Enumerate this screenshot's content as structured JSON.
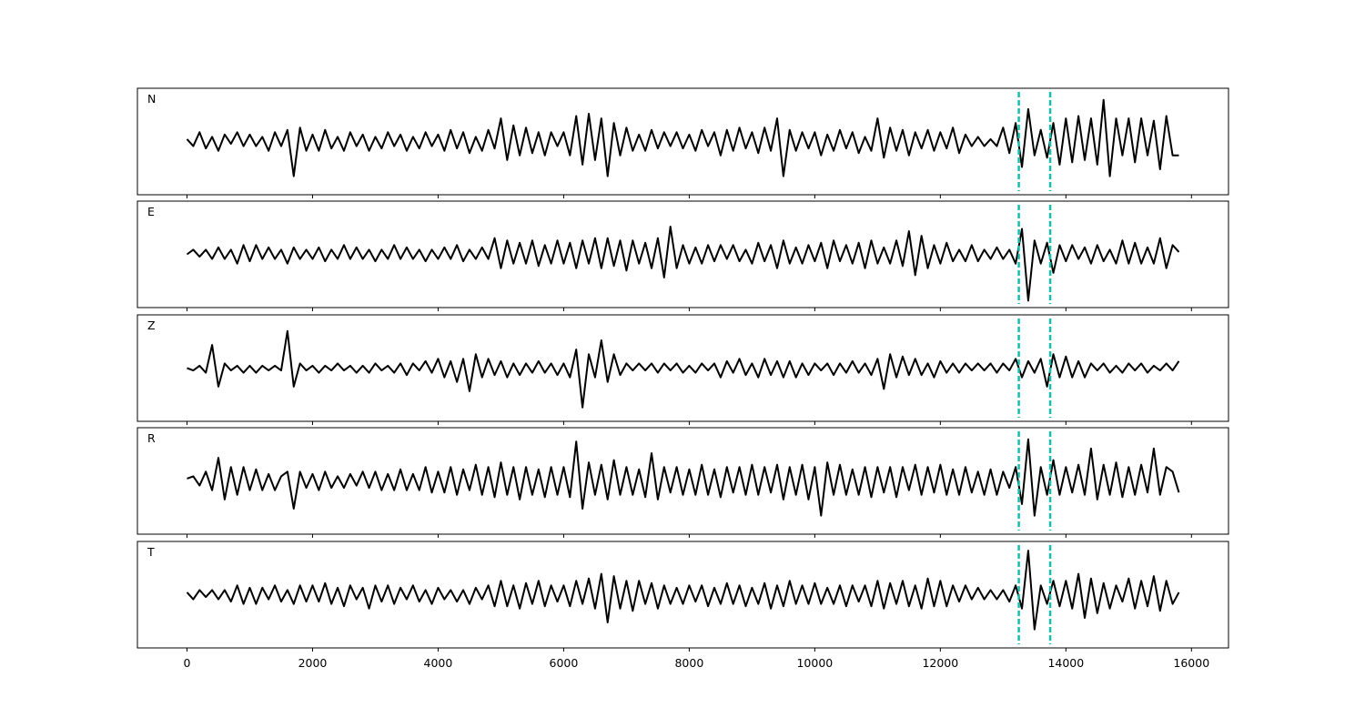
{
  "chart_data": {
    "type": "line",
    "xlim": [
      -790,
      16590
    ],
    "xticks": [
      0,
      2000,
      4000,
      6000,
      8000,
      10000,
      12000,
      14000,
      16000
    ],
    "ylim": [
      -1.15,
      1.15
    ],
    "vlines": [
      13250,
      13750
    ],
    "vline_color": "#14bfae",
    "x": [
      0,
      100,
      200,
      300,
      400,
      500,
      600,
      700,
      800,
      900,
      1000,
      1100,
      1200,
      1300,
      1400,
      1500,
      1600,
      1700,
      1800,
      1900,
      2000,
      2100,
      2200,
      2300,
      2400,
      2500,
      2600,
      2700,
      2800,
      2900,
      3000,
      3100,
      3200,
      3300,
      3400,
      3500,
      3600,
      3700,
      3800,
      3900,
      4000,
      4100,
      4200,
      4300,
      4400,
      4500,
      4600,
      4700,
      4800,
      4900,
      5000,
      5100,
      5200,
      5300,
      5400,
      5500,
      5600,
      5700,
      5800,
      5900,
      6000,
      6100,
      6200,
      6300,
      6400,
      6500,
      6600,
      6700,
      6800,
      6900,
      7000,
      7100,
      7200,
      7300,
      7400,
      7500,
      7600,
      7700,
      7800,
      7900,
      8000,
      8100,
      8200,
      8300,
      8400,
      8500,
      8600,
      8700,
      8800,
      8900,
      9000,
      9100,
      9200,
      9300,
      9400,
      9500,
      9600,
      9700,
      9800,
      9900,
      10000,
      10100,
      10200,
      10300,
      10400,
      10500,
      10600,
      10700,
      10800,
      10900,
      11000,
      11100,
      11200,
      11300,
      11400,
      11500,
      11600,
      11700,
      11800,
      11900,
      12000,
      12100,
      12200,
      12300,
      12400,
      12500,
      12600,
      12700,
      12800,
      12900,
      13000,
      13100,
      13200,
      13300,
      13400,
      13500,
      13600,
      13700,
      13800,
      13900,
      14000,
      14100,
      14200,
      14300,
      14400,
      14500,
      14600,
      14700,
      14800,
      14900,
      15000,
      15100,
      15200,
      15300,
      15400,
      15500,
      15600,
      15700,
      15800
    ],
    "series": [
      {
        "name": "N",
        "color": "#000000",
        "values": [
          0.05,
          -0.1,
          0.2,
          -0.15,
          0.1,
          -0.2,
          0.15,
          -0.05,
          0.2,
          -0.1,
          0.15,
          -0.1,
          0.1,
          -0.2,
          0.2,
          -0.1,
          0.25,
          -0.75,
          0.3,
          -0.2,
          0.15,
          -0.2,
          0.25,
          -0.15,
          0.1,
          -0.2,
          0.2,
          -0.1,
          0.15,
          -0.2,
          0.1,
          -0.15,
          0.2,
          -0.1,
          0.15,
          -0.2,
          0.1,
          -0.15,
          0.2,
          -0.1,
          0.15,
          -0.2,
          0.25,
          -0.15,
          0.2,
          -0.25,
          0.1,
          -0.2,
          0.25,
          -0.15,
          0.5,
          -0.4,
          0.35,
          -0.3,
          0.3,
          -0.25,
          0.2,
          -0.3,
          0.2,
          -0.1,
          0.2,
          -0.3,
          0.55,
          -0.5,
          0.6,
          -0.4,
          0.5,
          -0.75,
          0.4,
          -0.3,
          0.3,
          -0.2,
          0.15,
          -0.2,
          0.25,
          -0.15,
          0.2,
          -0.1,
          0.2,
          -0.15,
          0.15,
          -0.2,
          0.25,
          -0.1,
          0.2,
          -0.3,
          0.25,
          -0.2,
          0.3,
          -0.15,
          0.2,
          -0.25,
          0.3,
          -0.2,
          0.5,
          -0.75,
          0.25,
          -0.2,
          0.2,
          -0.15,
          0.2,
          -0.3,
          0.15,
          -0.2,
          0.25,
          -0.15,
          0.2,
          -0.25,
          0.1,
          -0.2,
          0.5,
          -0.35,
          0.3,
          -0.2,
          0.25,
          -0.3,
          0.2,
          -0.15,
          0.25,
          -0.2,
          0.2,
          -0.15,
          0.3,
          -0.25,
          0.15,
          -0.1,
          0.1,
          -0.1,
          0.05,
          -0.1,
          0.3,
          -0.25,
          0.4,
          -0.55,
          0.7,
          -0.3,
          0.25,
          -0.35,
          0.4,
          -0.5,
          0.5,
          -0.45,
          0.55,
          -0.4,
          0.5,
          -0.5,
          0.9,
          -0.75,
          0.5,
          -0.3,
          0.5,
          -0.45,
          0.5,
          -0.3,
          0.45,
          -0.6,
          0.55,
          -0.3,
          -0.3
        ]
      },
      {
        "name": "E",
        "color": "#000000",
        "values": [
          0,
          0.1,
          -0.05,
          0.1,
          -0.1,
          0.15,
          -0.1,
          0.1,
          -0.2,
          0.2,
          -0.15,
          0.2,
          -0.1,
          0.15,
          -0.1,
          0.1,
          -0.2,
          0.15,
          -0.1,
          0.1,
          -0.1,
          0.15,
          -0.15,
          0.1,
          -0.1,
          0.2,
          -0.1,
          0.15,
          -0.1,
          0.1,
          -0.15,
          0.1,
          -0.1,
          0.2,
          -0.1,
          0.15,
          -0.1,
          0.1,
          -0.15,
          0.1,
          -0.1,
          0.15,
          -0.1,
          0.2,
          -0.15,
          0.1,
          -0.1,
          0.15,
          -0.1,
          0.35,
          -0.3,
          0.3,
          -0.2,
          0.25,
          -0.2,
          0.3,
          -0.25,
          0.2,
          -0.2,
          0.3,
          -0.2,
          0.25,
          -0.3,
          0.3,
          -0.2,
          0.35,
          -0.3,
          0.35,
          -0.25,
          0.3,
          -0.35,
          0.3,
          -0.2,
          0.25,
          -0.3,
          0.35,
          -0.5,
          0.6,
          -0.3,
          0.2,
          -0.2,
          0.15,
          -0.2,
          0.2,
          -0.15,
          0.2,
          -0.1,
          0.2,
          -0.15,
          0.1,
          -0.2,
          0.25,
          -0.15,
          0.2,
          -0.3,
          0.3,
          -0.2,
          0.15,
          -0.2,
          0.2,
          -0.15,
          0.25,
          -0.3,
          0.3,
          -0.15,
          0.2,
          -0.2,
          0.25,
          -0.3,
          0.3,
          -0.2,
          0.15,
          -0.2,
          0.3,
          -0.25,
          0.5,
          -0.45,
          0.4,
          -0.3,
          0.2,
          -0.2,
          0.25,
          -0.15,
          0.1,
          -0.15,
          0.2,
          -0.15,
          0.1,
          -0.1,
          0.15,
          -0.1,
          0.1,
          -0.2,
          0.55,
          -1.0,
          0.3,
          -0.2,
          0.25,
          -0.4,
          0.2,
          -0.15,
          0.2,
          -0.1,
          0.15,
          -0.2,
          0.2,
          -0.15,
          0.1,
          -0.2,
          0.3,
          -0.2,
          0.25,
          -0.2,
          0.15,
          -0.2,
          0.35,
          -0.3,
          0.2,
          0.05
        ]
      },
      {
        "name": "Z",
        "color": "#000000",
        "values": [
          0,
          -0.05,
          0.05,
          -0.1,
          0.5,
          -0.4,
          0.1,
          -0.05,
          0.05,
          -0.1,
          0.05,
          -0.1,
          0.05,
          -0.05,
          0.05,
          -0.05,
          0.8,
          -0.4,
          0.1,
          -0.05,
          0.05,
          -0.1,
          0.05,
          -0.05,
          0.1,
          -0.05,
          0.05,
          -0.1,
          0.05,
          -0.1,
          0.1,
          -0.05,
          0.05,
          -0.1,
          0.1,
          -0.15,
          0.1,
          -0.05,
          0.15,
          -0.1,
          0.2,
          -0.2,
          0.15,
          -0.3,
          0.2,
          -0.5,
          0.3,
          -0.2,
          0.2,
          -0.15,
          0.15,
          -0.2,
          0.1,
          -0.15,
          0.1,
          -0.1,
          0.15,
          -0.1,
          0.1,
          -0.15,
          0.1,
          -0.2,
          0.4,
          -0.85,
          0.3,
          -0.2,
          0.6,
          -0.3,
          0.3,
          -0.15,
          0.1,
          -0.05,
          0.1,
          -0.05,
          0.1,
          -0.1,
          0.1,
          -0.05,
          0.1,
          -0.1,
          0.05,
          -0.1,
          0.1,
          -0.05,
          0.1,
          -0.2,
          0.15,
          -0.1,
          0.2,
          -0.15,
          0.1,
          -0.2,
          0.2,
          -0.15,
          0.15,
          -0.2,
          0.15,
          -0.2,
          0.1,
          -0.15,
          0.1,
          -0.05,
          0.1,
          -0.15,
          0.1,
          -0.1,
          0.15,
          -0.1,
          0.1,
          -0.15,
          0.2,
          -0.45,
          0.3,
          -0.2,
          0.25,
          -0.15,
          0.2,
          -0.15,
          0.1,
          -0.2,
          0.15,
          -0.1,
          0.1,
          -0.1,
          0.1,
          -0.05,
          0.1,
          -0.05,
          0.1,
          -0.1,
          0.1,
          -0.05,
          0.2,
          -0.2,
          0.15,
          -0.1,
          0.2,
          -0.4,
          0.3,
          -0.2,
          0.25,
          -0.2,
          0.15,
          -0.2,
          0.1,
          -0.05,
          0.1,
          -0.1,
          0.05,
          -0.1,
          0.1,
          -0.05,
          0.1,
          -0.1,
          0.05,
          -0.05,
          0.1,
          -0.05,
          0.15
        ]
      },
      {
        "name": "R",
        "color": "#000000",
        "values": [
          0.05,
          0.1,
          -0.1,
          0.2,
          -0.2,
          0.5,
          -0.4,
          0.3,
          -0.3,
          0.3,
          -0.2,
          0.25,
          -0.2,
          0.15,
          -0.2,
          0.1,
          0.2,
          -0.6,
          0.2,
          -0.15,
          0.15,
          -0.2,
          0.2,
          -0.15,
          0.1,
          -0.15,
          0.15,
          -0.1,
          0.2,
          -0.15,
          0.2,
          -0.2,
          0.15,
          -0.2,
          0.25,
          -0.2,
          0.15,
          -0.2,
          0.3,
          -0.25,
          0.2,
          -0.25,
          0.3,
          -0.3,
          0.25,
          -0.2,
          0.35,
          -0.3,
          0.3,
          -0.35,
          0.4,
          -0.3,
          0.3,
          -0.4,
          0.3,
          -0.3,
          0.25,
          -0.35,
          0.3,
          -0.3,
          0.3,
          -0.35,
          0.85,
          -0.6,
          0.4,
          -0.3,
          0.35,
          -0.4,
          0.45,
          -0.3,
          0.3,
          -0.3,
          0.25,
          -0.35,
          0.6,
          -0.4,
          0.3,
          -0.25,
          0.3,
          -0.3,
          0.25,
          -0.3,
          0.35,
          -0.3,
          0.25,
          -0.35,
          0.3,
          -0.25,
          0.3,
          -0.3,
          0.35,
          -0.3,
          0.3,
          -0.25,
          0.35,
          -0.4,
          0.3,
          -0.3,
          0.35,
          -0.4,
          0.3,
          -0.75,
          0.4,
          -0.3,
          0.35,
          -0.3,
          0.25,
          -0.3,
          0.3,
          -0.35,
          0.3,
          -0.25,
          0.3,
          -0.35,
          0.3,
          -0.2,
          0.35,
          -0.3,
          0.3,
          -0.25,
          0.35,
          -0.3,
          0.25,
          -0.3,
          0.3,
          -0.25,
          0.2,
          -0.3,
          0.25,
          -0.3,
          0.2,
          -0.15,
          0.3,
          -0.5,
          0.9,
          -0.75,
          0.3,
          -0.3,
          0.45,
          -0.3,
          0.3,
          -0.25,
          0.35,
          -0.3,
          0.7,
          -0.4,
          0.35,
          -0.3,
          0.4,
          -0.35,
          0.3,
          -0.3,
          0.35,
          -0.25,
          0.7,
          -0.3,
          0.3,
          0.2,
          -0.25
        ]
      },
      {
        "name": "T",
        "color": "#000000",
        "values": [
          0.05,
          -0.1,
          0.1,
          -0.05,
          0.1,
          -0.1,
          0.1,
          -0.15,
          0.2,
          -0.2,
          0.15,
          -0.2,
          0.15,
          -0.1,
          0.2,
          -0.15,
          0.1,
          -0.2,
          0.2,
          -0.15,
          0.2,
          -0.15,
          0.25,
          -0.2,
          0.15,
          -0.25,
          0.2,
          -0.1,
          0.15,
          -0.3,
          0.2,
          -0.15,
          0.2,
          -0.2,
          0.15,
          -0.1,
          0.2,
          -0.15,
          0.1,
          -0.2,
          0.15,
          -0.1,
          0.1,
          -0.15,
          0.1,
          -0.2,
          0.15,
          -0.1,
          0.2,
          -0.25,
          0.3,
          -0.25,
          0.2,
          -0.3,
          0.25,
          -0.2,
          0.3,
          -0.25,
          0.2,
          -0.15,
          0.2,
          -0.25,
          0.3,
          -0.2,
          0.35,
          -0.3,
          0.45,
          -0.6,
          0.4,
          -0.3,
          0.3,
          -0.35,
          0.3,
          -0.2,
          0.25,
          -0.3,
          0.2,
          -0.2,
          0.15,
          -0.2,
          0.2,
          -0.15,
          0.2,
          -0.25,
          0.15,
          -0.2,
          0.25,
          -0.2,
          0.2,
          -0.25,
          0.15,
          -0.2,
          0.25,
          -0.3,
          0.2,
          -0.25,
          0.3,
          -0.2,
          0.2,
          -0.2,
          0.25,
          -0.2,
          0.15,
          -0.2,
          0.2,
          -0.25,
          0.2,
          -0.15,
          0.2,
          -0.25,
          0.3,
          -0.3,
          0.25,
          -0.2,
          0.3,
          -0.25,
          0.2,
          -0.3,
          0.35,
          -0.25,
          0.3,
          -0.25,
          0.2,
          -0.15,
          0.2,
          -0.1,
          0.15,
          -0.1,
          0.1,
          -0.1,
          0.1,
          -0.15,
          0.2,
          -0.3,
          0.95,
          -0.75,
          0.2,
          -0.2,
          0.3,
          -0.25,
          0.3,
          -0.3,
          0.45,
          -0.5,
          0.35,
          -0.4,
          0.25,
          -0.3,
          0.2,
          -0.15,
          0.35,
          -0.3,
          0.3,
          -0.25,
          0.4,
          -0.35,
          0.3,
          -0.2,
          0.05
        ]
      }
    ]
  }
}
